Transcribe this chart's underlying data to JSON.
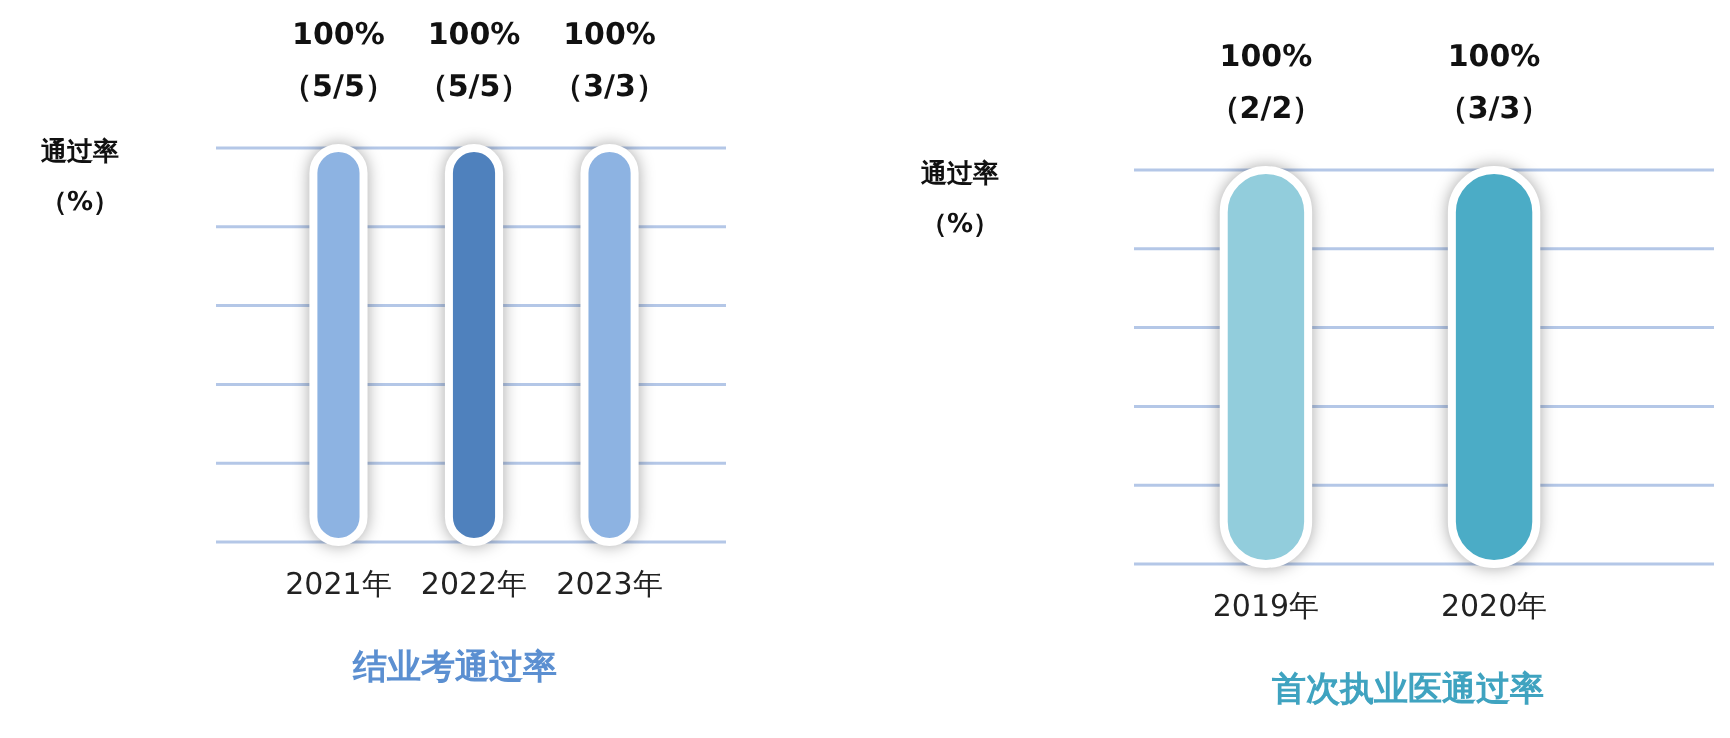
{
  "chart_data": [
    {
      "type": "bar",
      "title": "结业考通过率",
      "ylabel": "通过率（%）",
      "categories": [
        "2021年",
        "2022年",
        "2023年"
      ],
      "values": [
        100,
        100,
        100
      ],
      "colors": [
        "#8db3e2",
        "#4f81bd",
        "#8db3e2"
      ],
      "value_labels": [
        "100%\n（5/5）",
        "100%\n（5/5）",
        "100%\n（3/3）"
      ],
      "ylim": [
        0,
        100
      ],
      "yticks": [
        {
          "value": 0,
          "label": null
        },
        {
          "value": 20,
          "label": null
        },
        {
          "value": 40,
          "label": null
        },
        {
          "value": 60,
          "label": null
        },
        {
          "value": 80,
          "label": null
        },
        {
          "value": 100,
          "label": null
        }
      ],
      "grid": "y",
      "tick_labels": "x"
    },
    {
      "type": "bar",
      "title": "首次执业医通过率",
      "ylabel": "通过率（%）",
      "categories": [
        "2019年",
        "2020年"
      ],
      "values": [
        100,
        100
      ],
      "colors": [
        "#92cddc",
        "#4bacc6"
      ],
      "value_labels": [
        "100%\n（2/2）",
        "100%\n（3/3）"
      ],
      "ylim": [
        0,
        100
      ],
      "yticks": [
        {
          "value": 0,
          "label": null
        },
        {
          "value": 20,
          "label": null
        },
        {
          "value": 40,
          "label": null
        },
        {
          "value": 60,
          "label": null
        },
        {
          "value": 80,
          "label": null
        },
        {
          "value": 100,
          "label": null
        }
      ],
      "grid": "y",
      "tick_labels": "x"
    }
  ]
}
